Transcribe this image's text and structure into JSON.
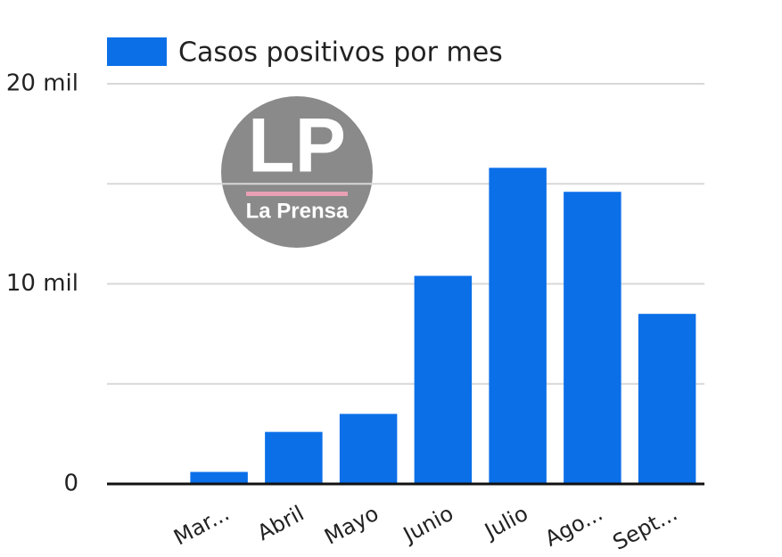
{
  "chart_data": {
    "type": "bar",
    "legend_label": "Casos positivos por mes",
    "categories": [
      null,
      "Mar...",
      "Abril",
      "Mayo",
      "Junio",
      "Julio",
      "Ago...",
      "Sept..."
    ],
    "values": [
      null,
      600,
      2600,
      3500,
      10400,
      15800,
      14600,
      8500
    ],
    "color": "#0b6fe8",
    "ylim": [
      0,
      20000
    ],
    "yticks": [
      {
        "value": 0,
        "label": "0"
      },
      {
        "value": 10000,
        "label": "10 mil"
      },
      {
        "value": 20000,
        "label": "20 mil"
      }
    ],
    "minor_yticks": [
      5000,
      15000
    ],
    "grid": true,
    "logo": {
      "initials": "LP",
      "name": "La Prensa"
    }
  }
}
